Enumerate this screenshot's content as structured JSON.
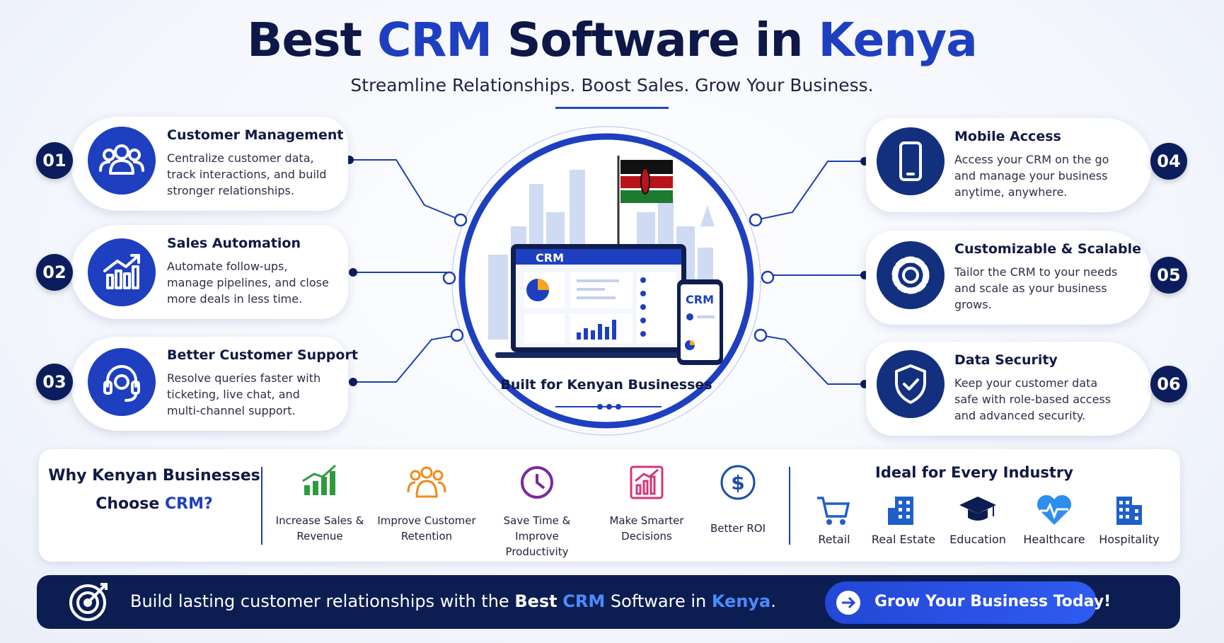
{
  "header": {
    "title_parts": [
      "Best",
      "CRM",
      "Software in",
      "Kenya"
    ],
    "subtitle": "Streamline Relationships. Boost Sales. Grow Your Business."
  },
  "features": [
    {
      "number": "01",
      "title": "Customer Management",
      "description": "Centralize customer data, track interactions, and build stronger relationships."
    },
    {
      "number": "02",
      "title": "Sales Automation",
      "description": "Automate follow-ups, manage pipelines, and close more deals in less time."
    },
    {
      "number": "03",
      "title": "Better Customer Support",
      "description": "Resolve queries faster with ticketing, live chat, and multi-channel support."
    },
    {
      "number": "04",
      "title": "Mobile Access",
      "description": "Access your CRM on the go and manage your business anytime, anywhere."
    },
    {
      "number": "05",
      "title": "Customizable & Scalable",
      "description": "Tailor the CRM to your needs and scale as your business grows."
    },
    {
      "number": "06",
      "title": "Data Security",
      "description": "Keep your customer data safe with role-based access and advanced security."
    }
  ],
  "center": {
    "laptop_label": "CRM",
    "phone_label": "CRM",
    "caption": "Built for Kenyan Businesses"
  },
  "why": {
    "heading_line1": "Why Kenyan Businesses",
    "heading_line2": "Choose",
    "heading_highlight": "CRM?",
    "benefits": [
      "Increase Sales & Revenue",
      "Improve Customer Retention",
      "Save Time & Improve Productivity",
      "Make Smarter Decisions",
      "Better ROI"
    ]
  },
  "industries": {
    "heading": "Ideal for Every Industry",
    "items": [
      "Retail",
      "Real Estate",
      "Education",
      "Healthcare",
      "Hospitality"
    ]
  },
  "footer": {
    "text_parts": [
      "Build lasting customer relationships with the",
      "Best",
      "CRM",
      "Software in",
      "Kenya",
      "."
    ],
    "button": "Grow Your Business Today!"
  }
}
